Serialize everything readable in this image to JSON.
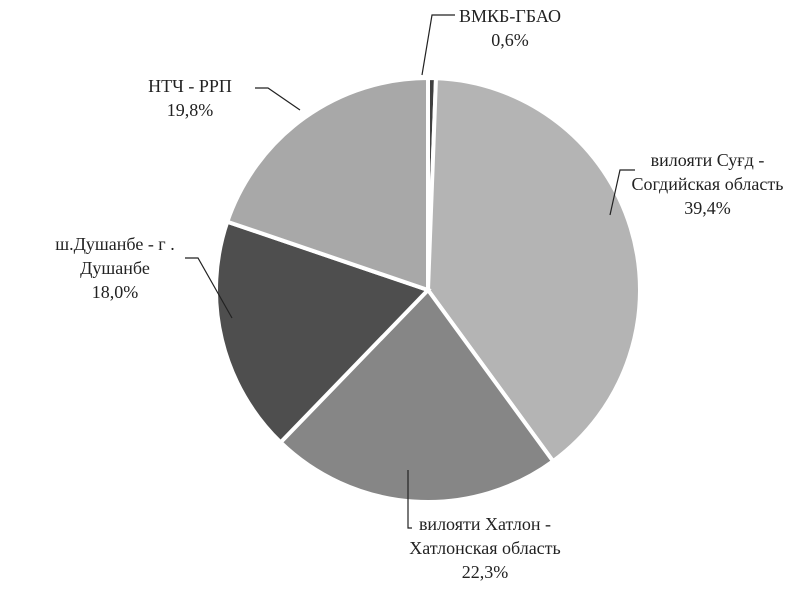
{
  "chart_data": {
    "type": "pie",
    "categories": [
      "ВМКБ-ГБАО",
      "вилояти Суғд - Согдийская область",
      "вилояти Хатлон - Хатлонская область",
      "ш.Душанбе - г . Душанбе",
      "НТЧ - РРП"
    ],
    "values": [
      0.6,
      39.4,
      22.3,
      18.0,
      19.8
    ],
    "value_labels": [
      "0,6%",
      "39,4%",
      "22,3%",
      "18,0%",
      "19,8%"
    ],
    "colors": [
      "#404040",
      "#b4b4b4",
      "#868686",
      "#4e4e4e",
      "#a8a8a8"
    ]
  }
}
